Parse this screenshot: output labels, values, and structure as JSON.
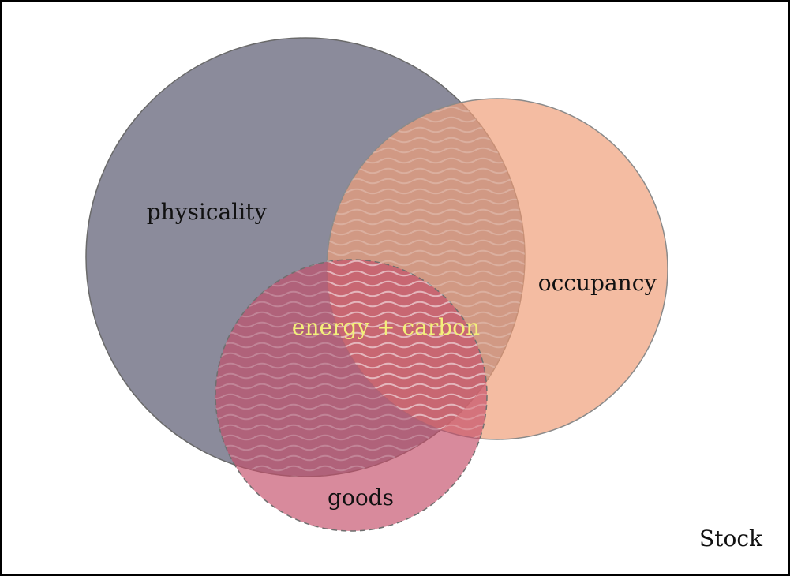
{
  "diagram": {
    "sets": [
      {
        "id": "physicality",
        "label": "physicality",
        "color": "#7b7b8c"
      },
      {
        "id": "occupancy",
        "label": "occupancy",
        "color": "#f0a47e"
      },
      {
        "id": "goods",
        "label": "goods",
        "color": "#c9566f"
      }
    ],
    "intersection_label": "energy + carbon",
    "intersection_label_color": "#f3f07a",
    "corner_label": "Stock"
  }
}
